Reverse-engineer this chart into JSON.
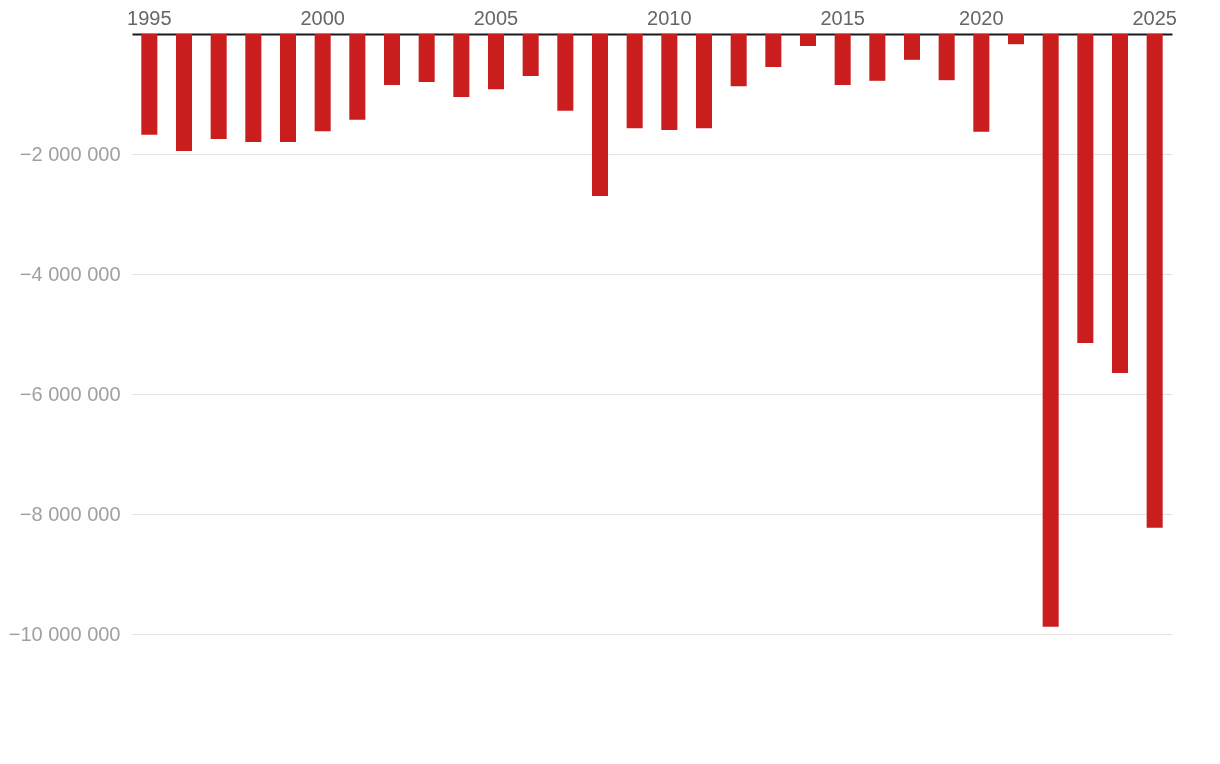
{
  "chart_data": {
    "type": "bar",
    "categories": [
      "1995",
      null,
      null,
      null,
      null,
      "2000",
      null,
      null,
      null,
      null,
      "2005",
      null,
      null,
      null,
      null,
      "2010",
      null,
      null,
      null,
      null,
      "2015",
      null,
      null,
      null,
      null,
      "2020",
      null,
      null,
      null,
      null,
      "2025"
    ],
    "values": [
      -1680000,
      -1950000,
      -1750000,
      -1800000,
      -1800000,
      -1620000,
      -1430000,
      -850000,
      -800000,
      -1050000,
      -920000,
      -700000,
      -1280000,
      -2700000,
      -1570000,
      -1600000,
      -1570000,
      -870000,
      -550000,
      -200000,
      -850000,
      -780000,
      -430000,
      null,
      -770000,
      -1630000,
      -170000,
      -9880000,
      -5150000,
      -5650000,
      -8230000
    ],
    "color": "#c91d1e",
    "ylim": [
      -10000000,
      0
    ],
    "yticks": [
      {
        "value": -2000000,
        "label": "−2 000 000"
      },
      {
        "value": -4000000,
        "label": "−4 000 000"
      },
      {
        "value": -6000000,
        "label": "−6 000 000"
      },
      {
        "value": -8000000,
        "label": "−8 000 000"
      },
      {
        "value": -10000000,
        "label": "−10 000 000"
      }
    ],
    "grid": "y"
  }
}
